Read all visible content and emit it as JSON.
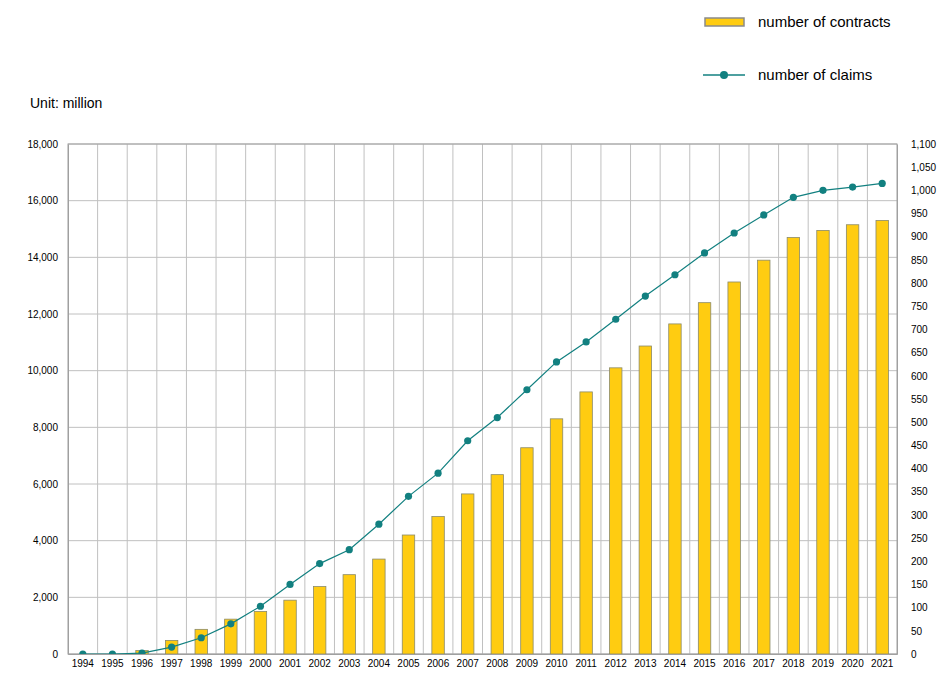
{
  "chart_data": {
    "type": "bar",
    "annotation": "Unit: million",
    "categories": [
      "1994",
      "1995",
      "1996",
      "1997",
      "1998",
      "1999",
      "2000",
      "2001",
      "2002",
      "2003",
      "2004",
      "2005",
      "2006",
      "2007",
      "2008",
      "2009",
      "2010",
      "2011",
      "2012",
      "2013",
      "2014",
      "2015",
      "2016",
      "2017",
      "2018",
      "2019",
      "2020",
      "2021"
    ],
    "series": [
      {
        "name": "number of contracts",
        "type": "bar",
        "color": "#ffcc11",
        "values": [
          0,
          0,
          120,
          480,
          870,
          1230,
          1500,
          1900,
          2380,
          2800,
          3350,
          4200,
          4850,
          5650,
          6330,
          7280,
          8300,
          9250,
          10100,
          10870,
          11650,
          12400,
          13130,
          13900,
          14700,
          14950,
          15150,
          15300
        ]
      },
      {
        "name": "number of claims",
        "type": "line",
        "axis": "y2",
        "color": "#128080",
        "marker": "circle",
        "values": [
          0,
          0,
          2,
          15,
          35,
          65,
          103,
          150,
          195,
          225,
          280,
          340,
          390,
          460,
          510,
          570,
          630,
          673,
          722,
          772,
          818,
          865,
          908,
          947,
          985,
          1000,
          1007,
          1015
        ]
      }
    ],
    "ylim": [
      0,
      18000
    ],
    "yticks": [
      0,
      {
        "value": 2000,
        "label": "2,000"
      },
      {
        "value": 4000,
        "label": "4,000"
      },
      {
        "value": 6000,
        "label": "6,000"
      },
      {
        "value": 8000,
        "label": "8,000"
      },
      {
        "value": 10000,
        "label": "10,000"
      },
      {
        "value": 12000,
        "label": "12,000"
      },
      {
        "value": 14000,
        "label": "14,000"
      },
      {
        "value": 16000,
        "label": "16,000"
      },
      {
        "value": 18000,
        "label": "18,000"
      }
    ],
    "y2lim": [
      0,
      1100
    ],
    "y2ticks": [
      0,
      50,
      100,
      150,
      200,
      250,
      300,
      350,
      400,
      450,
      500,
      550,
      600,
      650,
      700,
      750,
      800,
      850,
      900,
      950,
      {
        "value": 1000,
        "label": "1,000"
      },
      {
        "value": 1050,
        "label": "1,050"
      },
      {
        "value": 1100,
        "label": "1,100"
      }
    ],
    "grid": true,
    "legend": "top-right"
  }
}
